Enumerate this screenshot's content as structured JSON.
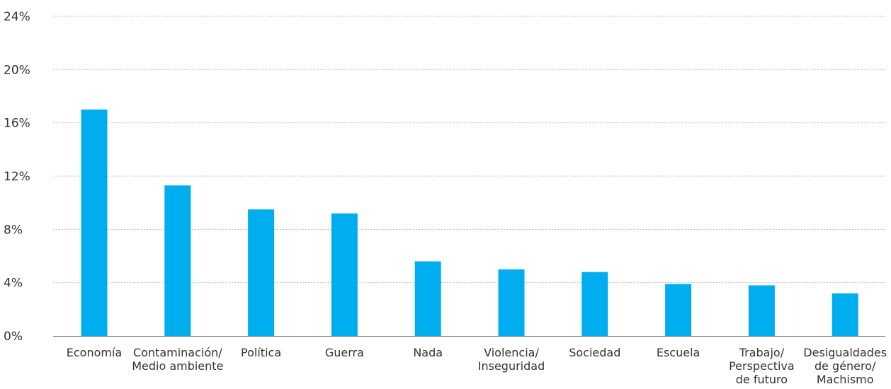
{
  "chart_data": {
    "type": "bar",
    "categories": [
      [
        "Economía"
      ],
      [
        "Contaminación/",
        "Medio ambiente"
      ],
      [
        "Política"
      ],
      [
        "Guerra"
      ],
      [
        "Nada"
      ],
      [
        "Violencia/",
        "Inseguridad"
      ],
      [
        "Sociedad"
      ],
      [
        "Escuela"
      ],
      [
        "Trabajo/",
        "Perspectiva",
        "de futuro"
      ],
      [
        "Desigualdades",
        "de género/",
        "Machismo"
      ]
    ],
    "values": [
      17.0,
      11.3,
      9.5,
      9.2,
      5.6,
      5.0,
      4.8,
      3.9,
      3.8,
      3.2
    ],
    "ylim": [
      0,
      24
    ],
    "yticks": [
      0,
      4,
      8,
      12,
      16,
      20,
      24
    ],
    "ytick_labels": [
      "0%",
      "4%",
      "8%",
      "12%",
      "16%",
      "20%",
      "24%"
    ],
    "title": "",
    "xlabel": "",
    "ylabel": "",
    "grid": true,
    "bar_color": "#00AEEF",
    "grid_color": "#BFBFBF",
    "axis_color": "#7F7F7F"
  }
}
